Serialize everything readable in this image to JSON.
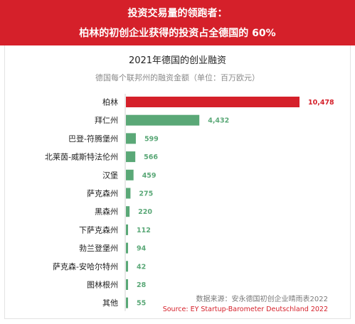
{
  "banner": {
    "line1": "投资交易量的领跑者：",
    "line2": "柏林的初创企业获得的投资占全德国的 60%"
  },
  "colors": {
    "banner": "#d5202a",
    "highlight": "#d5202a",
    "bar": "#5aa877"
  },
  "chart_data": {
    "type": "bar",
    "orientation": "horizontal",
    "title": "2021年德国的创业融资",
    "subtitle": "德国每个联邦州的融资金额（单位：百万欧元）",
    "categories": [
      "柏林",
      "拜仁州",
      "巴登-符腾堡州",
      "北莱茵-威斯特法伦州",
      "汉堡",
      "萨克森州",
      "黑森州",
      "下萨克森州",
      "勃兰登堡州",
      "萨克森-安哈尔特州",
      "图林根州",
      "其他"
    ],
    "values": [
      10478,
      4432,
      599,
      566,
      459,
      275,
      220,
      112,
      94,
      42,
      28,
      55
    ],
    "value_labels": [
      "10,478",
      "4,432",
      "599",
      "566",
      "459",
      "275",
      "220",
      "112",
      "94",
      "42",
      "28",
      "55"
    ],
    "highlight_index": 0
  },
  "source": {
    "cn": "数据来源：安永德国初创企业晴雨表2022",
    "en": "Source: EY Startup-Barometer Deutschland 2022"
  }
}
